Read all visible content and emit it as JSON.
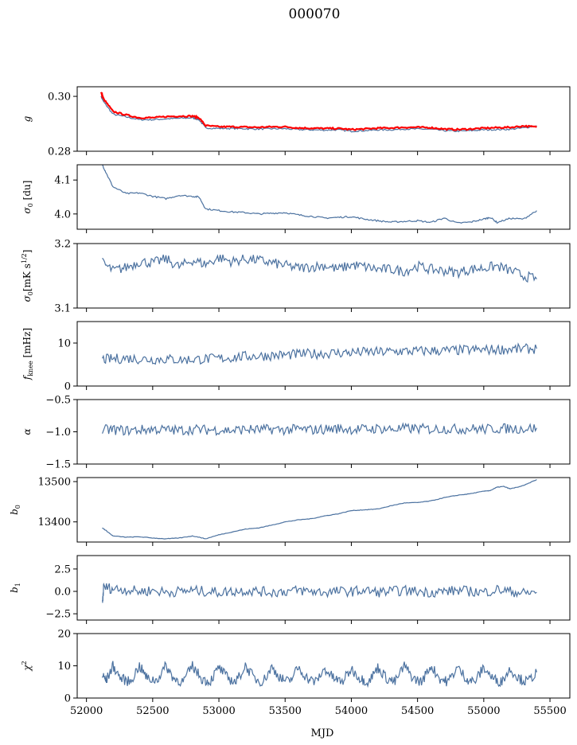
{
  "figure": {
    "title": "000070",
    "xlabel": "MJD",
    "xlim": [
      51930,
      55650
    ],
    "xticks": [
      52000,
      52500,
      53000,
      53500,
      54000,
      54500,
      55000,
      55500
    ],
    "series_color": "#4c72a0",
    "fit_color": "#ff0000"
  },
  "chart_data": [
    {
      "type": "line",
      "ylabel_main": "g",
      "ylabel_sub": "",
      "ylim": [
        0.28,
        0.3035
      ],
      "yticks": [
        0.28,
        0.3
      ],
      "ytick_labels": [
        "0.28",
        "0.30"
      ],
      "series": [
        {
          "x": [
            52110,
            52130,
            52200,
            52300,
            52400,
            52500,
            52600,
            52700,
            52800,
            52850,
            52900,
            53000,
            53100,
            53200,
            53300,
            53400,
            53500,
            53600,
            53700,
            53800,
            53900,
            54000,
            54100,
            54200,
            54300,
            54400,
            54500,
            54600,
            54700,
            54800,
            54900,
            55000,
            55100,
            55200,
            55300,
            55400
          ],
          "y": [
            0.3,
            0.298,
            0.2935,
            0.2925,
            0.2915,
            0.2915,
            0.2918,
            0.292,
            0.2922,
            0.2915,
            0.2885,
            0.2883,
            0.2883,
            0.2882,
            0.2881,
            0.2882,
            0.2882,
            0.2879,
            0.2878,
            0.2877,
            0.2878,
            0.2873,
            0.2875,
            0.2878,
            0.2878,
            0.2881,
            0.2881,
            0.288,
            0.2875,
            0.2873,
            0.2875,
            0.2878,
            0.2879,
            0.288,
            0.2885,
            0.2893
          ]
        },
        {
          "x": [
            52110,
            52130,
            52200,
            52300,
            52400,
            52500,
            52600,
            52700,
            52800,
            52850,
            52900,
            53000,
            53100,
            53200,
            53300,
            53400,
            53500,
            53600,
            53700,
            53800,
            53900,
            54000,
            54100,
            54200,
            54300,
            54400,
            54500,
            54600,
            54700,
            54800,
            54900,
            55000,
            55100,
            55200,
            55300,
            55400
          ],
          "y": [
            0.3015,
            0.299,
            0.2945,
            0.2932,
            0.2922,
            0.2922,
            0.2926,
            0.2928,
            0.2928,
            0.2922,
            0.2893,
            0.2889,
            0.2889,
            0.2888,
            0.2887,
            0.2889,
            0.2889,
            0.2885,
            0.2884,
            0.2883,
            0.2883,
            0.2879,
            0.2881,
            0.2884,
            0.2885,
            0.2887,
            0.2887,
            0.2886,
            0.2881,
            0.2879,
            0.2881,
            0.2884,
            0.2886,
            0.2887,
            0.2892,
            0.2888
          ]
        }
      ]
    },
    {
      "type": "line",
      "ylabel_main": "σ",
      "ylabel_sub": "0",
      "ylabel_suffix": " [du]",
      "ylim": [
        3.955,
        4.145
      ],
      "yticks": [
        4.0,
        4.1
      ],
      "ytick_labels": [
        "4.0",
        "4.1"
      ],
      "series": [
        {
          "x": [
            52120,
            52150,
            52200,
            52300,
            52400,
            52500,
            52600,
            52700,
            52800,
            52850,
            52900,
            53000,
            53100,
            53200,
            53300,
            53400,
            53500,
            53600,
            53700,
            53800,
            53900,
            54000,
            54100,
            54200,
            54300,
            54400,
            54500,
            54600,
            54700,
            54800,
            54900,
            55000,
            55050,
            55100,
            55200,
            55300,
            55400
          ],
          "y": [
            4.145,
            4.12,
            4.08,
            4.06,
            4.062,
            4.052,
            4.045,
            4.055,
            4.052,
            4.05,
            4.015,
            4.01,
            4.006,
            4.004,
            4.0,
            4.002,
            4.004,
            3.997,
            3.993,
            3.988,
            3.99,
            3.992,
            3.985,
            3.98,
            3.976,
            3.978,
            3.98,
            3.975,
            3.988,
            3.973,
            3.976,
            3.985,
            3.99,
            3.975,
            3.987,
            3.985,
            4.01
          ]
        }
      ]
    },
    {
      "type": "line",
      "ylabel_main": "σ",
      "ylabel_sub": "0",
      "ylabel_suffix": "[mK s",
      "ylabel_sup": "1/2",
      "ylabel_end": "]",
      "ylim": [
        3.1,
        3.2
      ],
      "yticks": [
        3.1,
        3.2
      ],
      "ytick_labels": [
        "3.1",
        "3.2"
      ],
      "series": [
        {
          "x": [
            52120,
            52200,
            52300,
            52400,
            52500,
            52600,
            52700,
            52800,
            52900,
            53000,
            53100,
            53200,
            53300,
            53400,
            53500,
            53600,
            53700,
            53800,
            53900,
            54000,
            54100,
            54200,
            54300,
            54400,
            54500,
            54600,
            54700,
            54800,
            54900,
            55000,
            55100,
            55200,
            55300,
            55400
          ],
          "y": [
            3.17,
            3.158,
            3.163,
            3.172,
            3.17,
            3.176,
            3.164,
            3.174,
            3.168,
            3.178,
            3.172,
            3.176,
            3.174,
            3.17,
            3.166,
            3.162,
            3.164,
            3.166,
            3.16,
            3.167,
            3.164,
            3.16,
            3.16,
            3.157,
            3.165,
            3.16,
            3.158,
            3.155,
            3.16,
            3.162,
            3.165,
            3.158,
            3.15,
            3.145
          ]
        }
      ]
    },
    {
      "type": "line",
      "ylabel_main": "f",
      "ylabel_sub": "knee",
      "ylabel_suffix": " [mHz]",
      "ylim": [
        0,
        15
      ],
      "yticks": [
        0,
        10
      ],
      "ytick_labels": [
        "0",
        "10"
      ],
      "series": [
        {
          "x": [
            52120,
            52200,
            52300,
            52400,
            52500,
            52600,
            52700,
            52800,
            52900,
            53000,
            53100,
            53200,
            53300,
            53400,
            53500,
            53600,
            53700,
            53800,
            53900,
            54000,
            54100,
            54200,
            54300,
            54400,
            54500,
            54600,
            54700,
            54800,
            54900,
            55000,
            55100,
            55200,
            55300,
            55400
          ],
          "y": [
            6.2,
            6.3,
            6.5,
            6.3,
            6.2,
            6.3,
            6.1,
            6.2,
            6.3,
            6.4,
            6.6,
            6.9,
            7.0,
            7.1,
            7.2,
            7.4,
            7.5,
            7.6,
            7.7,
            7.8,
            7.9,
            7.9,
            8.0,
            8.1,
            8.1,
            8.2,
            8.2,
            8.3,
            8.4,
            8.4,
            8.5,
            8.6,
            8.6,
            8.7
          ]
        }
      ]
    },
    {
      "type": "line",
      "ylabel_main": "α",
      "ylabel_sub": "",
      "ylim": [
        -1.5,
        -0.5
      ],
      "yticks": [
        -1.5,
        -1.0,
        -0.5
      ],
      "ytick_labels": [
        "−1.5",
        "−1.0",
        "−0.5"
      ],
      "series": [
        {
          "x": [
            52120,
            52200,
            52300,
            52400,
            52500,
            52600,
            52700,
            52800,
            52900,
            53000,
            53100,
            53200,
            53300,
            53400,
            53500,
            53600,
            53700,
            53800,
            53900,
            54000,
            54100,
            54200,
            54300,
            54400,
            54500,
            54600,
            54700,
            54800,
            54900,
            55000,
            55100,
            55200,
            55300,
            55400
          ],
          "y": [
            -0.97,
            -0.97,
            -0.98,
            -0.97,
            -0.96,
            -0.97,
            -0.98,
            -0.96,
            -0.97,
            -0.97,
            -0.98,
            -0.96,
            -0.97,
            -0.96,
            -0.97,
            -0.96,
            -0.97,
            -0.96,
            -0.95,
            -0.96,
            -0.96,
            -0.95,
            -0.96,
            -0.95,
            -0.95,
            -0.96,
            -0.95,
            -0.96,
            -0.95,
            -0.96,
            -0.95,
            -0.95,
            -0.95,
            -0.94
          ]
        }
      ]
    },
    {
      "type": "line",
      "ylabel_main": "b",
      "ylabel_sub": "0",
      "ylim": [
        13350,
        13510
      ],
      "yticks": [
        13400,
        13500
      ],
      "ytick_labels": [
        "13400",
        "13500"
      ],
      "series": [
        {
          "x": [
            52120,
            52150,
            52200,
            52300,
            52400,
            52500,
            52600,
            52700,
            52800,
            52850,
            52900,
            53000,
            53100,
            53200,
            53300,
            53400,
            53500,
            53600,
            53700,
            53800,
            53900,
            54000,
            54100,
            54200,
            54300,
            54400,
            54500,
            54600,
            54700,
            54800,
            54900,
            55000,
            55050,
            55100,
            55150,
            55200,
            55300,
            55400
          ],
          "y": [
            13385,
            13378,
            13365,
            13362,
            13363,
            13360,
            13358,
            13360,
            13365,
            13362,
            13358,
            13368,
            13375,
            13382,
            13385,
            13392,
            13400,
            13405,
            13408,
            13415,
            13420,
            13428,
            13430,
            13432,
            13440,
            13447,
            13448,
            13452,
            13460,
            13466,
            13470,
            13476,
            13478,
            13486,
            13488,
            13482,
            13490,
            13505
          ]
        }
      ]
    },
    {
      "type": "line",
      "ylabel_main": "b",
      "ylabel_sub": "1",
      "ylim": [
        -3.2,
        4.0
      ],
      "yticks": [
        -2.5,
        0.0,
        2.5
      ],
      "ytick_labels": [
        "−2.5",
        "0.0",
        "2.5"
      ],
      "series": [
        {
          "x": [
            52120,
            52130,
            52200,
            52300,
            52400,
            52500,
            52600,
            52700,
            52800,
            52900,
            53000,
            53100,
            53200,
            53300,
            53400,
            53500,
            53600,
            53700,
            53800,
            53900,
            54000,
            54100,
            54200,
            54300,
            54400,
            54500,
            54600,
            54700,
            54800,
            54900,
            55000,
            55100,
            55200,
            55300,
            55400
          ],
          "y": [
            -1.5,
            0.5,
            0.3,
            0.2,
            0.0,
            0.1,
            -0.1,
            0.0,
            0.1,
            0.0,
            -0.1,
            0.0,
            0.1,
            0.0,
            -0.1,
            0.0,
            0.1,
            0.0,
            -0.1,
            0.0,
            0.0,
            0.1,
            -0.1,
            0.0,
            0.1,
            0.0,
            -0.1,
            0.0,
            0.1,
            0.0,
            -0.1,
            0.2,
            0.0,
            -0.2,
            -0.1
          ]
        }
      ]
    },
    {
      "type": "line",
      "ylabel_main": "χ",
      "ylabel_sub": "",
      "ylabel_sup": "2",
      "ylim": [
        0,
        20
      ],
      "yticks": [
        0,
        10,
        20
      ],
      "ytick_labels": [
        "0",
        "10",
        "20"
      ],
      "series": [
        {
          "x": [
            52120,
            52150,
            52200,
            52260,
            52330,
            52400,
            52460,
            52530,
            52600,
            52660,
            52730,
            52800,
            52870,
            52930,
            53000,
            53070,
            53130,
            53200,
            53270,
            53330,
            53400,
            53470,
            53530,
            53600,
            53670,
            53730,
            53800,
            53870,
            53930,
            54000,
            54070,
            54130,
            54200,
            54270,
            54330,
            54400,
            54470,
            54530,
            54600,
            54670,
            54730,
            54800,
            54870,
            54930,
            55000,
            55070,
            55130,
            55200,
            55270,
            55330,
            55400
          ],
          "y": [
            7,
            5.5,
            10,
            6,
            5,
            10,
            6,
            5.5,
            10,
            6,
            5,
            10,
            6,
            5,
            9.5,
            6,
            5,
            10,
            6,
            5,
            9.5,
            6,
            5,
            9.5,
            6,
            5,
            9,
            6,
            5,
            9,
            6,
            5,
            9.5,
            6,
            5,
            10,
            6,
            5,
            10,
            6,
            5,
            9.5,
            6,
            5,
            9.5,
            6,
            5,
            9,
            6,
            5,
            8
          ]
        }
      ]
    }
  ]
}
